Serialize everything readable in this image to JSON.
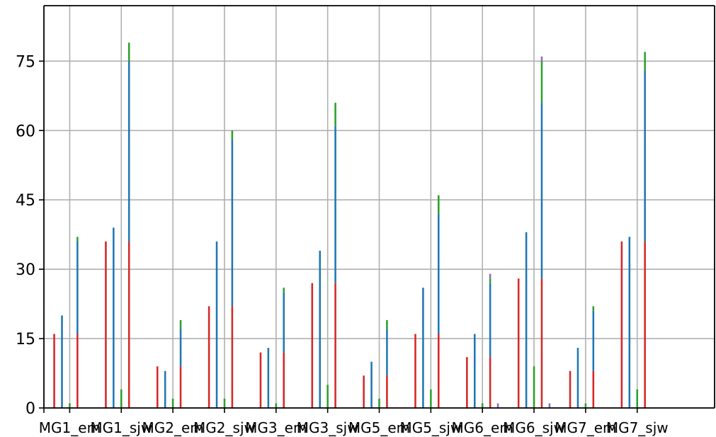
{
  "chart_data": {
    "type": "bar",
    "stacked": true,
    "title": "",
    "xlabel": "",
    "ylabel": "",
    "ylim": [
      0,
      87
    ],
    "yticks": [
      0,
      15,
      30,
      45,
      60,
      75
    ],
    "grid": true,
    "categories": [
      "MG1_em",
      "MG1_sjw",
      "MG2_em",
      "MG2_sjw",
      "MG3_em",
      "MG3_sjw",
      "MG5_em",
      "MG5_sjw",
      "MG6_em",
      "MG6_sjw",
      "MG7_em",
      "MG7_sjw"
    ],
    "bars_per_category": [
      "red",
      "blue",
      "green",
      "stacked",
      "purple"
    ],
    "series": [
      {
        "color": "#d62728",
        "values": [
          [
            16,
            0,
            0,
            16,
            0
          ],
          [
            36,
            0,
            0,
            36,
            0
          ],
          [
            9,
            0,
            0,
            9,
            0
          ],
          [
            22,
            0,
            0,
            22,
            0
          ],
          [
            12,
            0,
            0,
            12,
            0
          ],
          [
            27,
            0,
            0,
            27,
            0
          ],
          [
            7,
            0,
            0,
            7,
            0
          ],
          [
            16,
            0,
            0,
            16,
            0
          ],
          [
            11,
            0,
            0,
            11,
            0
          ],
          [
            28,
            0,
            0,
            28,
            0
          ],
          [
            8,
            0,
            0,
            8,
            0
          ],
          [
            36,
            0,
            0,
            36,
            0
          ]
        ]
      },
      {
        "color": "#1f77b4",
        "values": [
          [
            0,
            20,
            0,
            20,
            0
          ],
          [
            0,
            39,
            0,
            39,
            0
          ],
          [
            0,
            8,
            0,
            8,
            0
          ],
          [
            0,
            36,
            0,
            36,
            0
          ],
          [
            0,
            13,
            0,
            13,
            0
          ],
          [
            0,
            34,
            0,
            34,
            0
          ],
          [
            0,
            10,
            0,
            10,
            0
          ],
          [
            0,
            26,
            0,
            26,
            0
          ],
          [
            0,
            16,
            0,
            16,
            0
          ],
          [
            0,
            38,
            0,
            38,
            0
          ],
          [
            0,
            13,
            0,
            13,
            0
          ],
          [
            0,
            37,
            0,
            37,
            0
          ]
        ]
      },
      {
        "color": "#2ca02c",
        "values": [
          [
            0,
            0,
            1,
            1,
            0
          ],
          [
            0,
            0,
            4,
            4,
            0
          ],
          [
            0,
            0,
            2,
            2,
            0
          ],
          [
            0,
            0,
            2,
            2,
            0
          ],
          [
            0,
            0,
            1,
            1,
            0
          ],
          [
            0,
            0,
            5,
            5,
            0
          ],
          [
            0,
            0,
            2,
            2,
            0
          ],
          [
            0,
            0,
            4,
            4,
            0
          ],
          [
            0,
            0,
            1,
            1,
            0
          ],
          [
            0,
            0,
            9,
            9,
            0
          ],
          [
            0,
            0,
            1,
            1,
            0
          ],
          [
            0,
            0,
            4,
            4,
            0
          ]
        ]
      },
      {
        "color": "#9467bd",
        "values": [
          [
            0,
            0,
            0,
            0,
            0
          ],
          [
            0,
            0,
            0,
            0,
            0
          ],
          [
            0,
            0,
            0,
            0,
            0
          ],
          [
            0,
            0,
            0,
            0,
            0
          ],
          [
            0,
            0,
            0,
            0,
            0
          ],
          [
            0,
            0,
            0,
            0,
            0
          ],
          [
            0,
            0,
            0,
            0,
            0
          ],
          [
            0,
            0,
            0,
            0,
            0
          ],
          [
            0,
            0,
            0,
            1,
            1
          ],
          [
            0,
            0,
            0,
            1,
            1
          ],
          [
            0,
            0,
            0,
            0,
            0
          ],
          [
            0,
            0,
            0,
            0,
            0
          ]
        ]
      }
    ]
  }
}
